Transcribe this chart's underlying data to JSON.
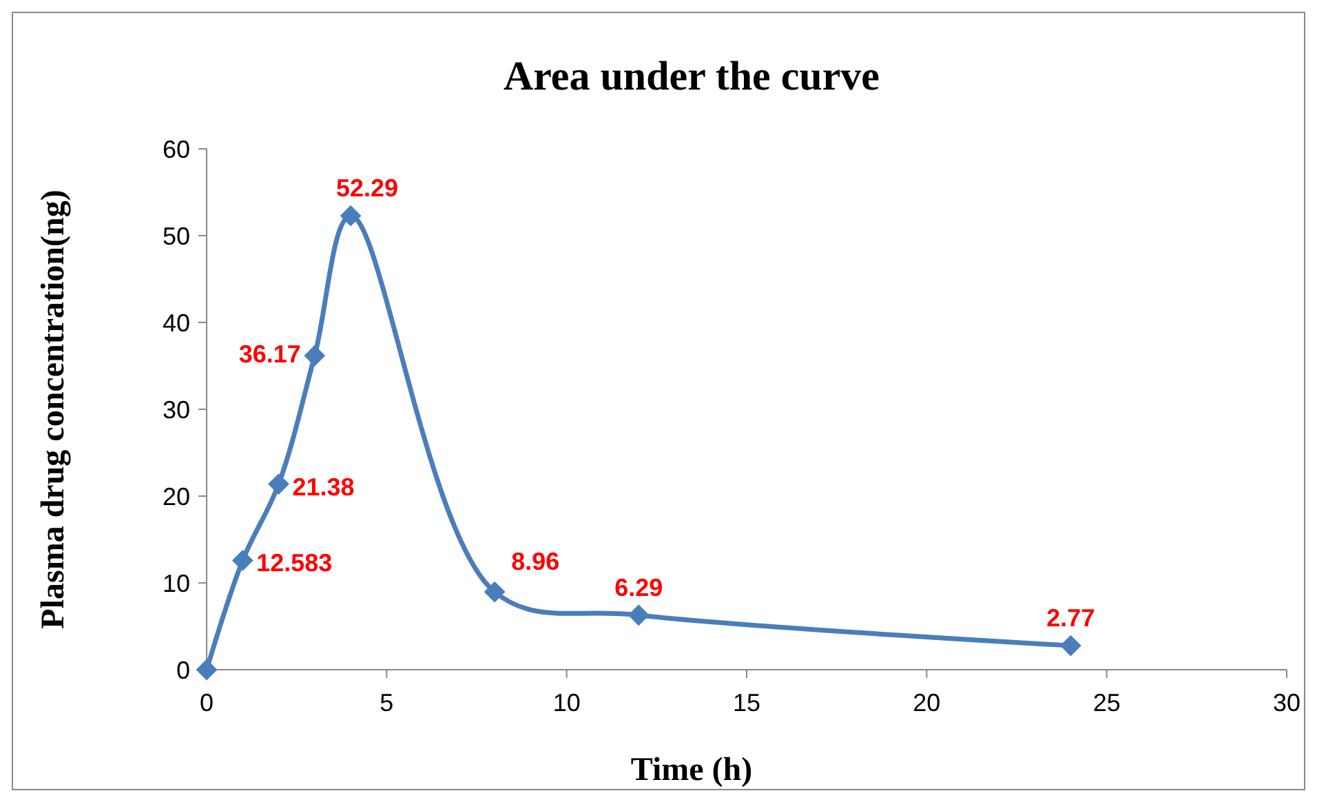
{
  "chart_data": {
    "type": "line",
    "title": "Area under the curve",
    "xlabel": "Time (h)",
    "ylabel": "Plasma drug concentration(ng)",
    "x": [
      0,
      1,
      2,
      3,
      4,
      8,
      12,
      24
    ],
    "series": [
      {
        "color": "#4a7ebb",
        "values": [
          0,
          12.583,
          21.38,
          36.17,
          52.29,
          8.96,
          6.29,
          2.77
        ],
        "value_labels": [
          null,
          "12.583",
          "21.38",
          "36.17",
          "52.29",
          "8.96",
          "6.29",
          "2.77"
        ]
      }
    ],
    "xlim": [
      0,
      30
    ],
    "xticks": [
      0,
      5,
      10,
      15,
      20,
      25,
      30
    ],
    "ylim": [
      0,
      60
    ],
    "yticks": [
      0,
      10,
      20,
      30,
      40,
      50,
      60
    ],
    "grid": false,
    "marker": "diamond",
    "line_style": "solid"
  }
}
